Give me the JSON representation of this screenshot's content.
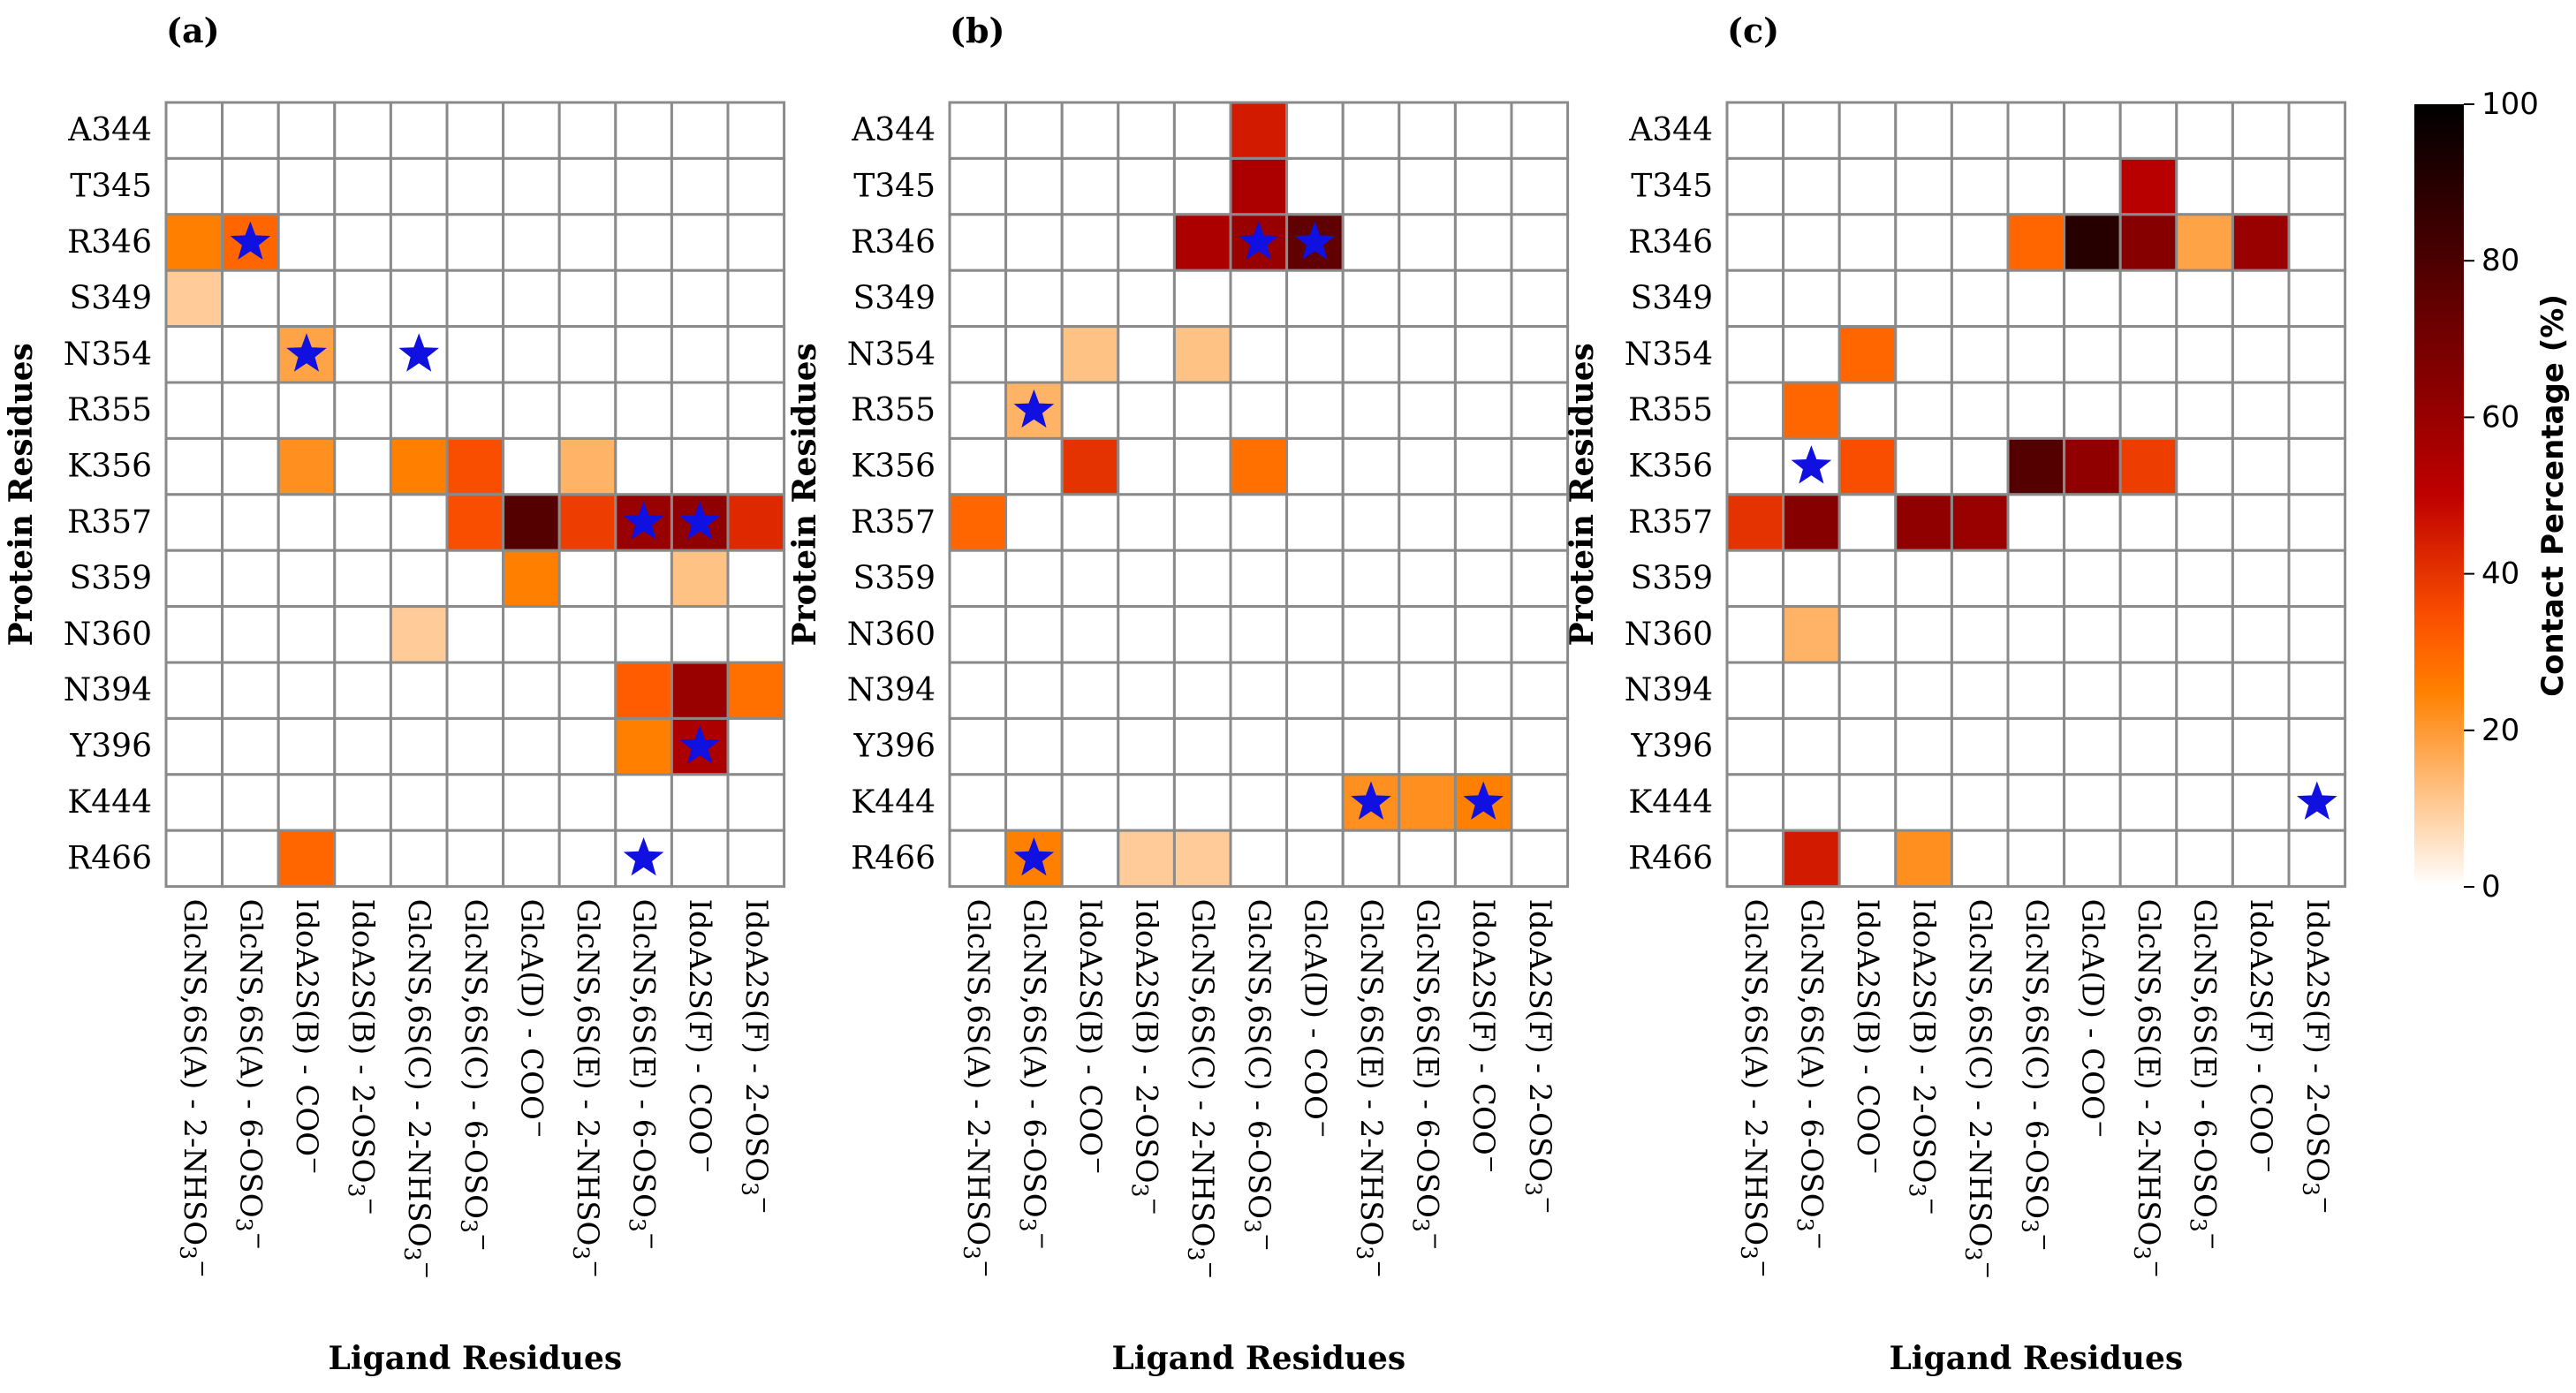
{
  "chart_data": {
    "type": "heatmap",
    "colormap": "gist_heat_r",
    "star_color": "#1010e0",
    "grid_color": "#8a8a8a",
    "rows": [
      "A344",
      "T345",
      "R346",
      "S349",
      "N354",
      "R355",
      "K356",
      "R357",
      "S359",
      "N360",
      "N394",
      "Y396",
      "K444",
      "R466"
    ],
    "columns": [
      {
        "main": "GlcNS,6S(A) - 2-NHSO",
        "sub": "3",
        "sup": "−"
      },
      {
        "main": "GlcNS,6S(A) - 6-OSO",
        "sub": "3",
        "sup": "−"
      },
      {
        "main": "IdoA2S(B) - COO",
        "sub": "",
        "sup": "−"
      },
      {
        "main": "IdoA2S(B) - 2-OSO",
        "sub": "3",
        "sup": "−"
      },
      {
        "main": "GlcNS,6S(C) - 2-NHSO",
        "sub": "3",
        "sup": "−"
      },
      {
        "main": "GlcNS,6S(C) - 6-OSO",
        "sub": "3",
        "sup": "−"
      },
      {
        "main": "GlcA(D) - COO",
        "sub": "",
        "sup": "−"
      },
      {
        "main": "GlcNS,6S(E) - 2-NHSO",
        "sub": "3",
        "sup": "−"
      },
      {
        "main": "GlcNS,6S(E) - 6-OSO",
        "sub": "3",
        "sup": "−"
      },
      {
        "main": "IdoA2S(F) - COO",
        "sub": "",
        "sup": "−"
      },
      {
        "main": "IdoA2S(F) - 2-OSO",
        "sub": "3",
        "sup": "−"
      }
    ],
    "xlabel": "Ligand Residues",
    "ylabel": "Protein Residues",
    "colorbar": {
      "label": "Contact Percentage (%)",
      "range": [
        0,
        100
      ],
      "ticks": [
        "0",
        "20",
        "40",
        "60",
        "80",
        "100"
      ]
    },
    "panels": [
      {
        "label": "(a)",
        "values": [
          [
            0,
            0,
            0,
            0,
            0,
            0,
            0,
            0,
            0,
            0,
            0
          ],
          [
            0,
            0,
            0,
            0,
            0,
            0,
            0,
            0,
            0,
            0,
            0
          ],
          [
            25,
            30,
            0,
            0,
            0,
            0,
            0,
            0,
            0,
            0,
            0
          ],
          [
            10,
            0,
            0,
            0,
            0,
            0,
            0,
            0,
            0,
            0,
            0
          ],
          [
            0,
            0,
            18,
            0,
            0,
            0,
            0,
            0,
            0,
            0,
            0
          ],
          [
            0,
            0,
            0,
            0,
            0,
            0,
            0,
            0,
            0,
            0,
            0
          ],
          [
            0,
            0,
            22,
            0,
            25,
            35,
            0,
            15,
            0,
            0,
            0
          ],
          [
            0,
            0,
            0,
            0,
            0,
            35,
            78,
            38,
            60,
            62,
            42
          ],
          [
            0,
            0,
            0,
            0,
            0,
            0,
            25,
            0,
            0,
            12,
            0
          ],
          [
            0,
            0,
            0,
            0,
            10,
            0,
            0,
            0,
            0,
            0,
            0
          ],
          [
            0,
            0,
            0,
            0,
            0,
            0,
            0,
            0,
            32,
            60,
            28
          ],
          [
            0,
            0,
            0,
            0,
            0,
            0,
            0,
            0,
            25,
            55,
            0
          ],
          [
            0,
            0,
            0,
            0,
            0,
            0,
            0,
            0,
            0,
            0,
            0
          ],
          [
            0,
            0,
            30,
            0,
            0,
            0,
            0,
            0,
            0,
            0,
            0
          ]
        ],
        "stars": [
          [
            2,
            1
          ],
          [
            4,
            2
          ],
          [
            4,
            4
          ],
          [
            7,
            8
          ],
          [
            7,
            9
          ],
          [
            11,
            9
          ],
          [
            13,
            8
          ]
        ]
      },
      {
        "label": "(b)",
        "values": [
          [
            0,
            0,
            0,
            0,
            0,
            45,
            0,
            0,
            0,
            0,
            0
          ],
          [
            0,
            0,
            0,
            0,
            0,
            55,
            0,
            0,
            0,
            0,
            0
          ],
          [
            0,
            0,
            0,
            0,
            55,
            60,
            75,
            0,
            0,
            0,
            0
          ],
          [
            0,
            0,
            0,
            0,
            0,
            0,
            0,
            0,
            0,
            0,
            0
          ],
          [
            0,
            0,
            12,
            0,
            12,
            0,
            0,
            0,
            0,
            0,
            0
          ],
          [
            0,
            15,
            0,
            0,
            0,
            0,
            0,
            0,
            0,
            0,
            0
          ],
          [
            0,
            0,
            40,
            0,
            0,
            28,
            0,
            0,
            0,
            0,
            0
          ],
          [
            30,
            0,
            0,
            0,
            0,
            0,
            0,
            0,
            0,
            0,
            0
          ],
          [
            0,
            0,
            0,
            0,
            0,
            0,
            0,
            0,
            0,
            0,
            0
          ],
          [
            0,
            0,
            0,
            0,
            0,
            0,
            0,
            0,
            0,
            0,
            0
          ],
          [
            0,
            0,
            0,
            0,
            0,
            0,
            0,
            0,
            0,
            0,
            0
          ],
          [
            0,
            0,
            0,
            0,
            0,
            0,
            0,
            0,
            0,
            0,
            0
          ],
          [
            0,
            0,
            0,
            0,
            0,
            0,
            0,
            22,
            22,
            25,
            0
          ],
          [
            0,
            25,
            0,
            10,
            10,
            0,
            0,
            0,
            0,
            0,
            0
          ]
        ],
        "stars": [
          [
            2,
            5
          ],
          [
            2,
            6
          ],
          [
            5,
            1
          ],
          [
            12,
            7
          ],
          [
            12,
            9
          ],
          [
            13,
            1
          ]
        ]
      },
      {
        "label": "(c)",
        "values": [
          [
            0,
            0,
            0,
            0,
            0,
            0,
            0,
            0,
            0,
            0,
            0
          ],
          [
            0,
            0,
            0,
            0,
            0,
            0,
            0,
            52,
            0,
            0,
            0
          ],
          [
            0,
            0,
            0,
            0,
            0,
            30,
            90,
            65,
            18,
            60,
            0
          ],
          [
            0,
            0,
            0,
            0,
            0,
            0,
            0,
            0,
            0,
            0,
            0
          ],
          [
            0,
            0,
            30,
            0,
            0,
            0,
            0,
            0,
            0,
            0,
            0
          ],
          [
            0,
            30,
            0,
            0,
            0,
            0,
            0,
            0,
            0,
            0,
            0
          ],
          [
            0,
            0,
            35,
            0,
            0,
            78,
            62,
            38,
            0,
            0,
            0
          ],
          [
            40,
            65,
            0,
            62,
            60,
            0,
            0,
            0,
            0,
            0,
            0
          ],
          [
            0,
            0,
            0,
            0,
            0,
            0,
            0,
            0,
            0,
            0,
            0
          ],
          [
            0,
            15,
            0,
            0,
            0,
            0,
            0,
            0,
            0,
            0,
            0
          ],
          [
            0,
            0,
            0,
            0,
            0,
            0,
            0,
            0,
            0,
            0,
            0
          ],
          [
            0,
            0,
            0,
            0,
            0,
            0,
            0,
            0,
            0,
            0,
            0
          ],
          [
            0,
            0,
            0,
            0,
            0,
            0,
            0,
            0,
            0,
            0,
            0
          ],
          [
            0,
            45,
            0,
            22,
            0,
            0,
            0,
            0,
            0,
            0,
            0
          ]
        ],
        "stars": [
          [
            6,
            1
          ],
          [
            12,
            10
          ]
        ]
      }
    ]
  }
}
